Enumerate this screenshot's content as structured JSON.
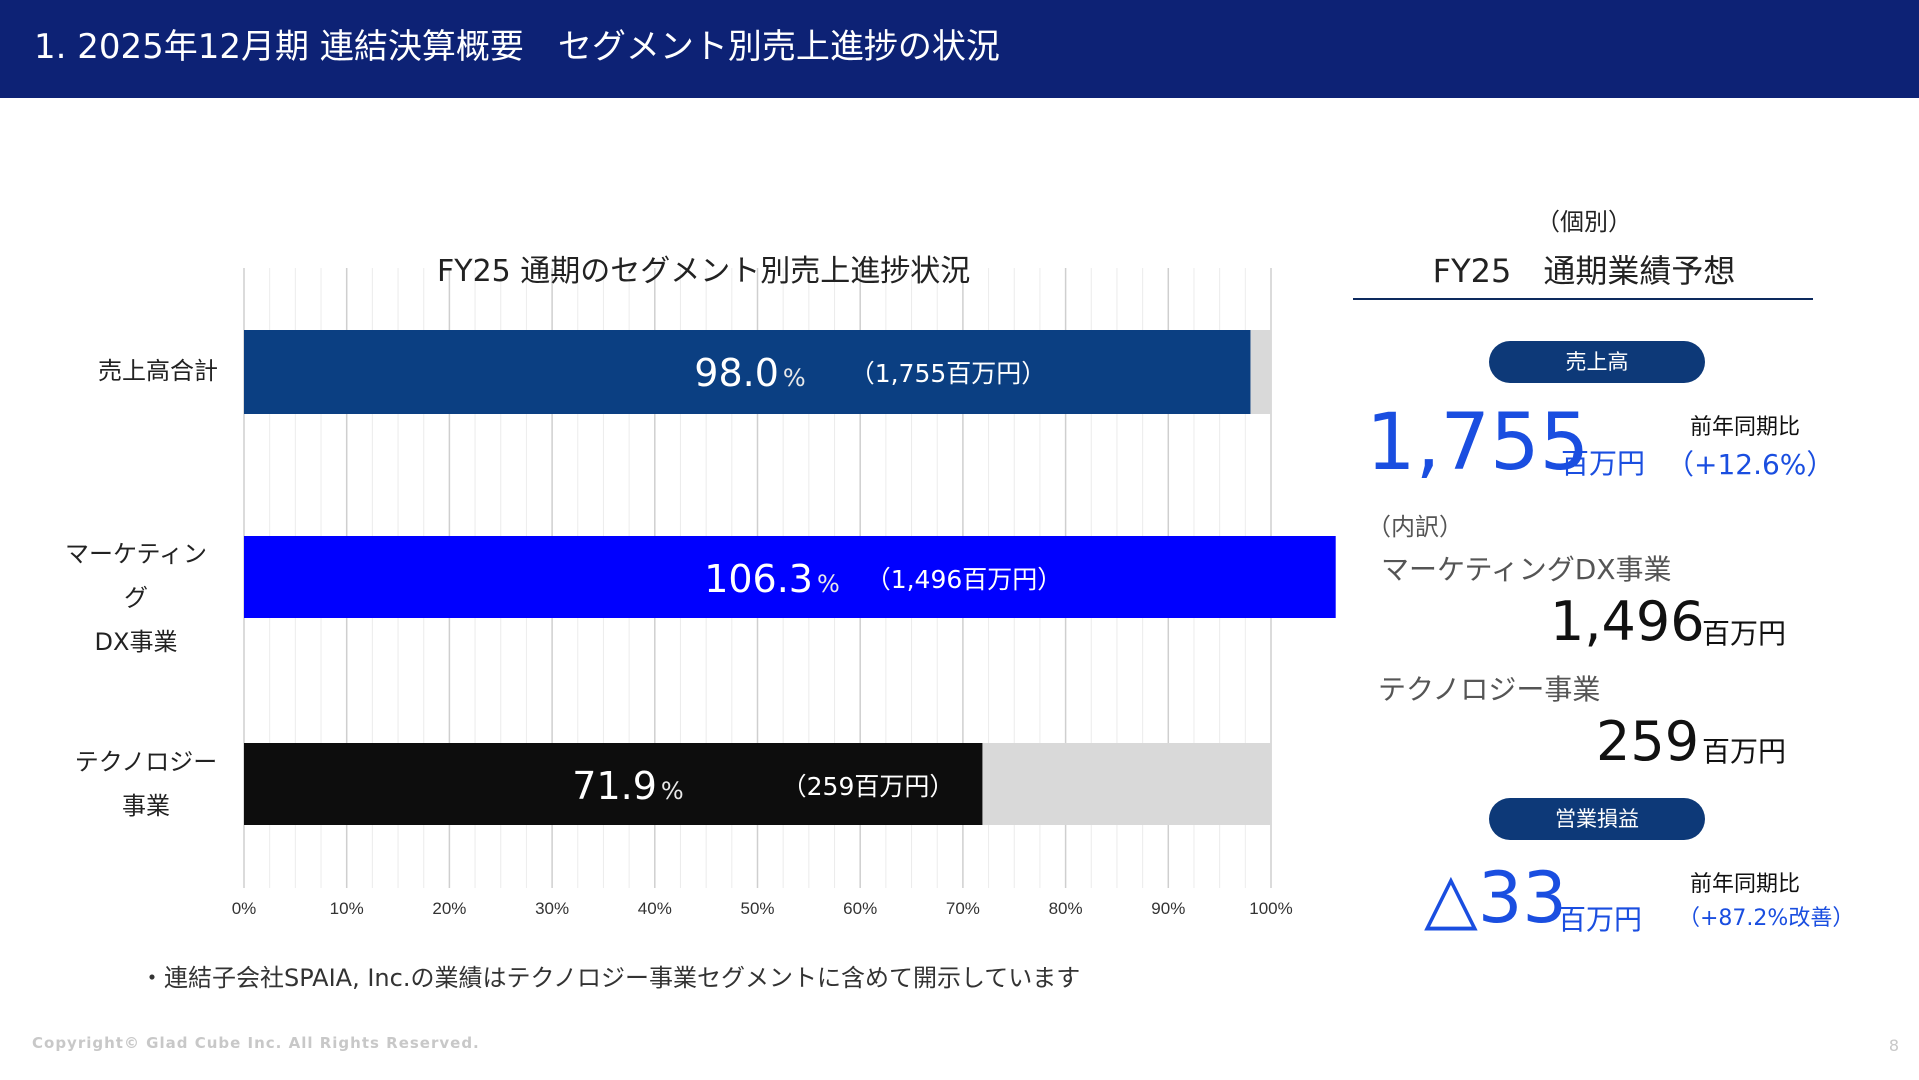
{
  "header": {
    "title": "1. 2025年12月期 連結決算概要　セグメント別売上進捗の状況"
  },
  "chart_data": {
    "type": "bar",
    "orientation": "horizontal",
    "title": "FY25 通期のセグメント別売上進捗状況",
    "xlim": [
      0,
      100
    ],
    "x_ticks": [
      "0%",
      "10%",
      "20%",
      "30%",
      "40%",
      "50%",
      "60%",
      "70%",
      "80%",
      "90%",
      "100%"
    ],
    "grid": true,
    "categories": [
      {
        "label_lines": [
          "売上高合計"
        ],
        "value": 98.0,
        "value_text": "98.0",
        "unit": "%",
        "amount_text": "（1,755百万円）",
        "color": "#0b3f82"
      },
      {
        "label_lines": [
          "マーケティング",
          "DX事業"
        ],
        "value": 106.3,
        "value_text": "106.3",
        "unit": "%",
        "amount_text": "（1,496百万円）",
        "color": "#0000ff"
      },
      {
        "label_lines": [
          "テクノロジー",
          "事業"
        ],
        "value": 71.9,
        "value_text": "71.9",
        "unit": "%",
        "amount_text": "（259百万円）",
        "color": "#0d0d0d"
      }
    ],
    "track_color": "#d9d9d9"
  },
  "note": "・連結子会社SPAIA, Inc.の業績はテクノロジー事業セグメントに含めて開示しています",
  "copyright": "Copyright© Glad Cube Inc. All Rights Reserved.",
  "page_number": "8",
  "panel": {
    "subtitle": "（個別）",
    "title": "FY25　通期業績予想",
    "sales": {
      "pill": "売上高",
      "value": "1,755",
      "unit": "百万円",
      "yoy_label": "前年同期比",
      "yoy_value": "（+12.6%）"
    },
    "breakdown_label": "（内訳）",
    "segments": [
      {
        "name": "マーケティングDX事業",
        "value": "1,496",
        "unit": "百万円"
      },
      {
        "name": "テクノロジー事業",
        "value": "259",
        "unit": "百万円"
      }
    ],
    "operating": {
      "pill": "営業損益",
      "value": "△33",
      "unit": "百万円",
      "yoy_label": "前年同期比",
      "yoy_value": "（+87.2%改善）"
    }
  }
}
